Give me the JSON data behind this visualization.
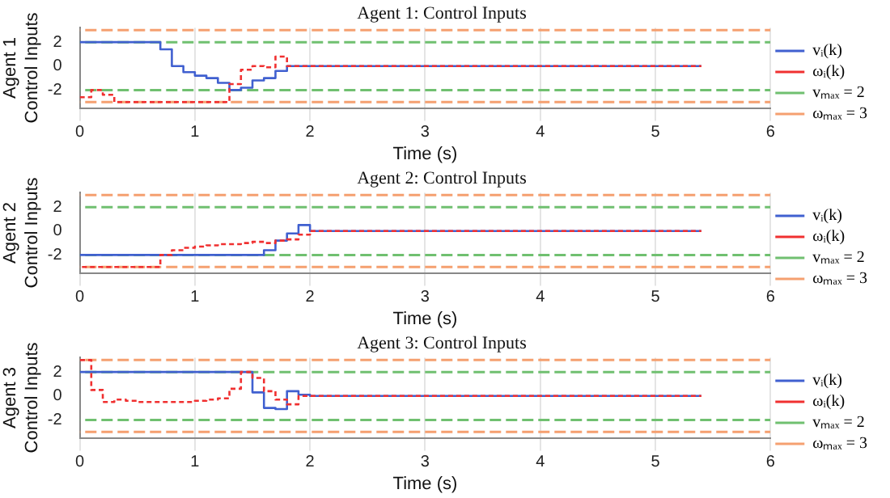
{
  "chart_data": [
    {
      "type": "step",
      "title": "Agent 1: Control Inputs",
      "xlabel": "Time (s)",
      "ylabel": "Agent 1\nControl Inputs",
      "xlim": [
        0,
        6
      ],
      "xticks": [
        0,
        1,
        2,
        3,
        4,
        5,
        6
      ],
      "ylim": [
        -3.5,
        3.2
      ],
      "yticks": [
        -2,
        0,
        2
      ],
      "grid": "x",
      "legend": "right",
      "series": [
        {
          "name": "vᵢ(k)",
          "color": "#4060d0",
          "line_style": "solid",
          "x": [
            0,
            0.7,
            0.8,
            0.9,
            1.0,
            1.1,
            1.2,
            1.3,
            1.4,
            1.5,
            1.6,
            1.7,
            1.8,
            5.4
          ],
          "values": [
            2,
            1.4,
            0,
            -0.5,
            -0.8,
            -1.0,
            -1.4,
            -2.0,
            -1.8,
            -1.2,
            -1.0,
            -0.4,
            0,
            0
          ]
        },
        {
          "name": "ωᵢ(k)",
          "color": "#f03030",
          "line_style": "dashed",
          "x": [
            0,
            0.1,
            0.2,
            0.3,
            1.3,
            1.4,
            1.5,
            1.6,
            1.7,
            1.8,
            5.4
          ],
          "values": [
            -2.6,
            -2.0,
            -2.4,
            -3.0,
            -1.5,
            -0.3,
            0,
            -0.1,
            0.8,
            0,
            0
          ]
        }
      ],
      "ref_lines": [
        {
          "axis": "y",
          "value": 2,
          "label": "vₘₐₓ = 2",
          "color": "#70c070",
          "line_style": "dashed"
        },
        {
          "axis": "y",
          "value": -2,
          "color": "#70c070",
          "line_style": "dashed"
        },
        {
          "axis": "y",
          "value": 3,
          "label": "ωₘₐₓ = 3",
          "color": "#f5a070",
          "line_style": "dashed"
        },
        {
          "axis": "y",
          "value": -3,
          "color": "#f5a070",
          "line_style": "dashed"
        }
      ]
    },
    {
      "type": "step",
      "title": "Agent 2: Control Inputs",
      "xlabel": "Time (s)",
      "ylabel": "Agent 2\nControl Inputs",
      "xlim": [
        0,
        6
      ],
      "xticks": [
        0,
        1,
        2,
        3,
        4,
        5,
        6
      ],
      "ylim": [
        -3.5,
        3.2
      ],
      "yticks": [
        -2,
        0,
        2
      ],
      "grid": "x",
      "legend": "right",
      "series": [
        {
          "name": "vᵢ(k)",
          "color": "#4060d0",
          "line_style": "solid",
          "x": [
            0,
            1.6,
            1.7,
            1.8,
            1.9,
            2.0,
            5.4
          ],
          "values": [
            -2,
            -1.6,
            -0.8,
            -0.2,
            0.5,
            0,
            0
          ]
        },
        {
          "name": "ωᵢ(k)",
          "color": "#f03030",
          "line_style": "dashed",
          "x": [
            0,
            0.7,
            0.8,
            0.9,
            1.0,
            1.1,
            1.2,
            1.3,
            1.4,
            1.5,
            1.6,
            1.7,
            1.8,
            1.9,
            2.0,
            5.4
          ],
          "values": [
            -3,
            -2.0,
            -1.6,
            -1.4,
            -1.3,
            -1.2,
            -1.1,
            -1.1,
            -1.0,
            -0.9,
            -1.0,
            -0.8,
            -0.7,
            -0.3,
            0,
            0
          ]
        }
      ],
      "ref_lines": [
        {
          "axis": "y",
          "value": 2,
          "label": "vₘₐₓ = 2",
          "color": "#70c070",
          "line_style": "dashed"
        },
        {
          "axis": "y",
          "value": -2,
          "color": "#70c070",
          "line_style": "dashed"
        },
        {
          "axis": "y",
          "value": 3,
          "label": "ωₘₐₓ = 3",
          "color": "#f5a070",
          "line_style": "dashed"
        },
        {
          "axis": "y",
          "value": -3,
          "color": "#f5a070",
          "line_style": "dashed"
        }
      ]
    },
    {
      "type": "step",
      "title": "Agent 3: Control Inputs",
      "xlabel": "Time (s)",
      "ylabel": "Agent 3\nControl Inputs",
      "xlim": [
        0,
        6
      ],
      "xticks": [
        0,
        1,
        2,
        3,
        4,
        5,
        6
      ],
      "ylim": [
        -3.5,
        3.2
      ],
      "yticks": [
        -2,
        0,
        2
      ],
      "grid": "x",
      "legend": "right",
      "series": [
        {
          "name": "vᵢ(k)",
          "color": "#4060d0",
          "line_style": "solid",
          "x": [
            0,
            1.5,
            1.6,
            1.7,
            1.8,
            1.9,
            2.0,
            5.4
          ],
          "values": [
            2,
            0.3,
            -1.0,
            -1.1,
            0.4,
            0.1,
            0,
            0
          ]
        },
        {
          "name": "ωᵢ(k)",
          "color": "#f03030",
          "line_style": "dashed",
          "x": [
            0,
            0.1,
            0.2,
            0.3,
            0.4,
            0.5,
            1.0,
            1.1,
            1.2,
            1.3,
            1.4,
            1.5,
            1.6,
            1.7,
            1.8,
            1.9,
            2.0,
            5.4
          ],
          "values": [
            3,
            0.5,
            -0.5,
            -0.3,
            -0.4,
            -0.5,
            -0.4,
            -0.3,
            -0.2,
            0.6,
            2.0,
            1.5,
            0.4,
            -0.3,
            -0.7,
            0,
            0,
            0
          ]
        }
      ],
      "ref_lines": [
        {
          "axis": "y",
          "value": 2,
          "label": "vₘₐₓ = 2",
          "color": "#70c070",
          "line_style": "dashed"
        },
        {
          "axis": "y",
          "value": -2,
          "color": "#70c070",
          "line_style": "dashed"
        },
        {
          "axis": "y",
          "value": 3,
          "label": "ωₘₐₓ = 3",
          "color": "#f5a070",
          "line_style": "dashed"
        },
        {
          "axis": "y",
          "value": -3,
          "color": "#f5a070",
          "line_style": "dashed"
        }
      ]
    }
  ]
}
